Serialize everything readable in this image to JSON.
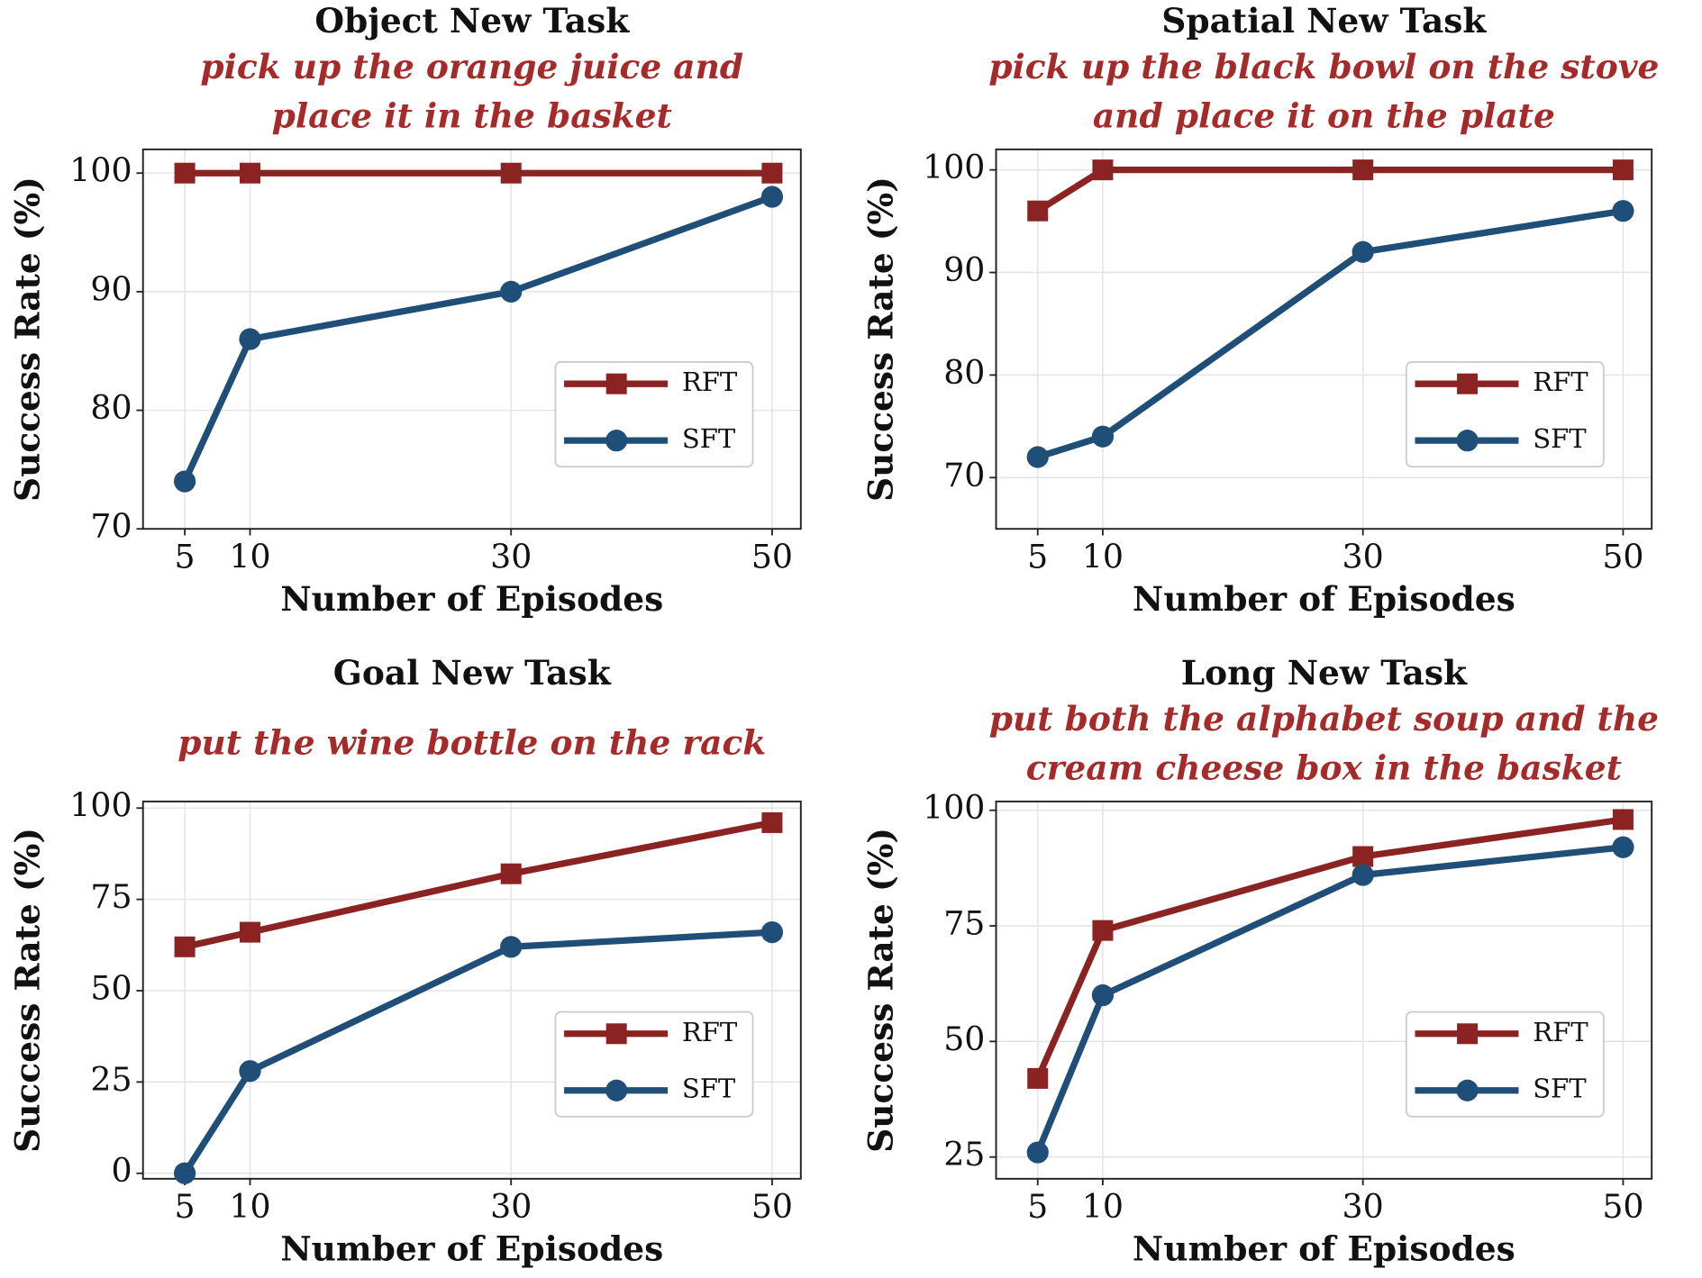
{
  "chart_data": [
    {
      "type": "line",
      "title": "Object New Task",
      "subtitle": [
        "pick up the orange juice and",
        "place it in the basket"
      ],
      "xlabel": "Number of Episodes",
      "ylabel": "Success Rate (%)",
      "x": [
        5,
        10,
        30,
        50
      ],
      "xlim": [
        1.8,
        52.2
      ],
      "xticks": [
        5,
        10,
        30,
        50
      ],
      "ylim": [
        70,
        102
      ],
      "yticks": [
        70,
        80,
        90,
        100
      ],
      "grid": true,
      "legend": "lower right",
      "series": [
        {
          "name": "RFT",
          "color": "#8b2323",
          "marker": "square",
          "values": [
            100,
            100,
            100,
            100
          ]
        },
        {
          "name": "SFT",
          "color": "#1f4e79",
          "marker": "circle",
          "values": [
            74,
            86,
            90,
            98
          ]
        }
      ]
    },
    {
      "type": "line",
      "title": "Spatial New Task",
      "subtitle": [
        "pick up the black bowl on the stove",
        "and place it on the plate"
      ],
      "xlabel": "Number of Episodes",
      "ylabel": "Success Rate (%)",
      "x": [
        5,
        10,
        30,
        50
      ],
      "xlim": [
        1.8,
        52.2
      ],
      "xticks": [
        5,
        10,
        30,
        50
      ],
      "ylim": [
        65,
        102
      ],
      "yticks": [
        70,
        80,
        90,
        100
      ],
      "grid": true,
      "legend": "lower right",
      "series": [
        {
          "name": "RFT",
          "color": "#8b2323",
          "marker": "square",
          "values": [
            96,
            100,
            100,
            100
          ]
        },
        {
          "name": "SFT",
          "color": "#1f4e79",
          "marker": "circle",
          "values": [
            72,
            74,
            92,
            96
          ]
        }
      ]
    },
    {
      "type": "line",
      "title": "Goal New Task",
      "subtitle": [
        "put the wine bottle on the rack"
      ],
      "xlabel": "Number of Episodes",
      "ylabel": "Success Rate (%)",
      "x": [
        5,
        10,
        30,
        50
      ],
      "xlim": [
        1.8,
        52.2
      ],
      "xticks": [
        5,
        10,
        30,
        50
      ],
      "ylim": [
        -1.5,
        101.8
      ],
      "yticks": [
        0,
        25,
        50,
        75,
        100
      ],
      "grid": true,
      "legend": "lower right",
      "series": [
        {
          "name": "RFT",
          "color": "#8b2323",
          "marker": "square",
          "values": [
            62,
            66,
            82,
            96
          ]
        },
        {
          "name": "SFT",
          "color": "#1f4e79",
          "marker": "circle",
          "values": [
            0,
            28,
            62,
            66
          ]
        }
      ]
    },
    {
      "type": "line",
      "title": "Long New Task",
      "subtitle": [
        "put both the alphabet soup and the",
        "cream cheese box in the basket"
      ],
      "xlabel": "Number of Episodes",
      "ylabel": "Success Rate (%)",
      "x": [
        5,
        10,
        30,
        50
      ],
      "xlim": [
        1.8,
        52.2
      ],
      "xticks": [
        5,
        10,
        30,
        50
      ],
      "ylim": [
        20.3,
        101.9
      ],
      "yticks": [
        25,
        50,
        75,
        100
      ],
      "grid": true,
      "legend": "lower right",
      "series": [
        {
          "name": "RFT",
          "color": "#8b2323",
          "marker": "square",
          "values": [
            42,
            74,
            90,
            98
          ]
        },
        {
          "name": "SFT",
          "color": "#1f4e79",
          "marker": "circle",
          "values": [
            26,
            60,
            86,
            92
          ]
        }
      ]
    }
  ]
}
